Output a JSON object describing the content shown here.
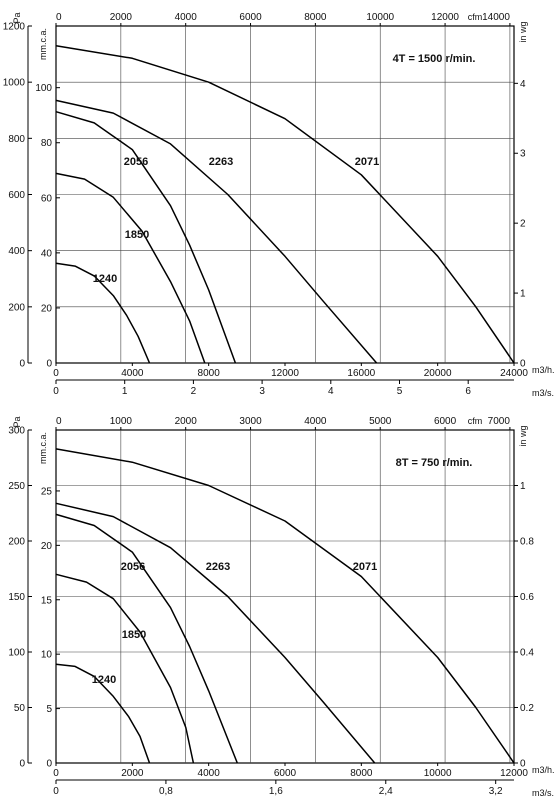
{
  "chart_data": [
    {
      "type": "line",
      "annotation": "4T = 1500 r/min.",
      "units": {
        "x_bottom_inner": "m3/h.",
        "x_bottom_outer": "m3/s.",
        "x_top": "cfm",
        "y_left_outer": "Pa",
        "y_left_inner": "mm.c.a.",
        "y_right": "in wg"
      },
      "axes": {
        "x_m3h": {
          "range": [
            0,
            24000
          ],
          "ticks": [
            0,
            4000,
            8000,
            12000,
            16000,
            20000,
            24000
          ]
        },
        "x_m3s": {
          "range": [
            0,
            6.6667
          ],
          "ticks": [
            0,
            1,
            2,
            3,
            4,
            5,
            6
          ],
          "tick_labels": [
            "0",
            "1",
            "2",
            "3",
            "4",
            "5",
            "6"
          ]
        },
        "x_cfm": {
          "range": [
            0,
            14126
          ],
          "ticks": [
            0,
            2000,
            4000,
            6000,
            8000,
            10000,
            12000,
            14000
          ],
          "tick_labels": [
            "0",
            "2000",
            "4000",
            "6000",
            "8000",
            "10000",
            "12000",
            "14000"
          ]
        },
        "y_pa": {
          "range": [
            0,
            1200
          ],
          "ticks": [
            0,
            200,
            400,
            600,
            800,
            1000,
            1200
          ]
        },
        "y_mmca": {
          "range": [
            0,
            122.4
          ],
          "ticks": [
            0,
            20,
            40,
            60,
            80,
            100
          ]
        },
        "y_inwg": {
          "range": [
            0,
            4.82
          ],
          "ticks": [
            0,
            1,
            2,
            3,
            4
          ]
        }
      },
      "grid": true,
      "series": [
        {
          "name": "1240",
          "x": [
            0,
            1000,
            2000,
            3000,
            3700,
            4300,
            4900
          ],
          "y": [
            355,
            345,
            310,
            240,
            170,
            95,
            0
          ]
        },
        {
          "name": "1850",
          "x": [
            0,
            1500,
            3000,
            4500,
            6000,
            7000,
            7800
          ],
          "y": [
            675,
            655,
            590,
            470,
            290,
            150,
            0
          ]
        },
        {
          "name": "2056",
          "x": [
            0,
            2000,
            4000,
            6000,
            7000,
            8000,
            9400
          ],
          "y": [
            895,
            855,
            760,
            560,
            420,
            260,
            0
          ]
        },
        {
          "name": "2263",
          "x": [
            0,
            3000,
            6000,
            9000,
            12000,
            14000,
            16800
          ],
          "y": [
            935,
            890,
            780,
            600,
            380,
            220,
            0
          ]
        },
        {
          "name": "2071",
          "x": [
            0,
            4000,
            8000,
            12000,
            16000,
            20000,
            22000,
            24000
          ],
          "y": [
            1130,
            1085,
            1000,
            870,
            670,
            380,
            200,
            0
          ]
        }
      ]
    },
    {
      "type": "line",
      "annotation": "8T = 750 r/min.",
      "units": {
        "x_bottom_inner": "m3/h.",
        "x_bottom_outer": "m3/s.",
        "x_top": "cfm",
        "y_left_outer": "Pa",
        "y_left_inner": "mm.c.a.",
        "y_right": "in wg"
      },
      "axes": {
        "x_m3h": {
          "range": [
            0,
            12000
          ],
          "ticks": [
            0,
            2000,
            4000,
            6000,
            8000,
            10000,
            12000
          ]
        },
        "x_m3s": {
          "range": [
            0,
            3.3333
          ],
          "ticks": [
            0,
            0.8,
            1.6,
            2.4,
            3.2
          ],
          "tick_labels": [
            "0",
            "0,8",
            "1,6",
            "2,4",
            "3,2"
          ]
        },
        "x_cfm": {
          "range": [
            0,
            7063
          ],
          "ticks": [
            0,
            1000,
            2000,
            3000,
            4000,
            5000,
            6000,
            7000
          ],
          "tick_labels": [
            "0",
            "1000",
            "2000",
            "3000",
            "4000",
            "5000",
            "6000",
            "7000"
          ]
        },
        "y_pa": {
          "range": [
            0,
            300
          ],
          "ticks": [
            0,
            50,
            100,
            150,
            200,
            250,
            300
          ]
        },
        "y_mmca": {
          "range": [
            0,
            30.6
          ],
          "ticks": [
            0,
            5,
            10,
            15,
            20,
            25
          ]
        },
        "y_inwg": {
          "range": [
            0,
            1.2
          ],
          "ticks": [
            0,
            0.2,
            0.4,
            0.6,
            0.8,
            1
          ]
        }
      },
      "grid": true,
      "series": [
        {
          "name": "1240",
          "x": [
            0,
            500,
            1000,
            1500,
            1900,
            2200,
            2450
          ],
          "y": [
            89,
            87,
            78,
            60,
            42,
            24,
            0
          ]
        },
        {
          "name": "1850",
          "x": [
            0,
            800,
            1500,
            2200,
            3000,
            3400,
            3600
          ],
          "y": [
            170,
            163,
            148,
            118,
            68,
            32,
            0
          ]
        },
        {
          "name": "2056",
          "x": [
            0,
            1000,
            2000,
            3000,
            3500,
            4000,
            4750
          ],
          "y": [
            224,
            214,
            190,
            140,
            105,
            65,
            0
          ]
        },
        {
          "name": "2263",
          "x": [
            0,
            1500,
            3000,
            4500,
            6000,
            7000,
            8350
          ],
          "y": [
            234,
            222,
            194,
            150,
            95,
            55,
            0
          ]
        },
        {
          "name": "2071",
          "x": [
            0,
            2000,
            4000,
            6000,
            8000,
            10000,
            11000,
            12000
          ],
          "y": [
            283,
            271,
            250,
            218,
            168,
            95,
            50,
            0
          ]
        }
      ]
    }
  ]
}
